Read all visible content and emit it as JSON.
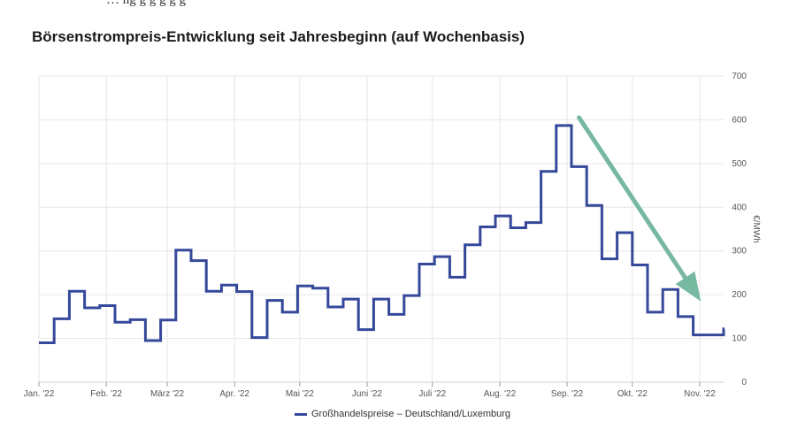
{
  "header": {
    "fragment": "… ng      g      g          g     g   g     ",
    "title": "Börsenstrompreis-Entwicklung seit Jahresbeginn (auf Wochenbasis)"
  },
  "legend": {
    "label": "Großhandelspreise – Deutschland/Luxemburg"
  },
  "colors": {
    "series": "#35489a",
    "arrow": "#77b8a0",
    "grid": "#e6e6e6"
  },
  "chart_data": {
    "type": "line",
    "step": true,
    "title": "Börsenstrompreis-Entwicklung seit Jahresbeginn (auf Wochenbasis)",
    "ylabel": "€/MWh",
    "ylim": [
      0,
      700
    ],
    "yticks": [
      0,
      100,
      200,
      300,
      400,
      500,
      600,
      700
    ],
    "xlim": [
      0,
      45
    ],
    "x_tick_positions": [
      0,
      4.43,
      8.43,
      12.86,
      17.14,
      21.57,
      25.86,
      30.29,
      34.71,
      39,
      43.43
    ],
    "x_tick_labels": [
      "Jan. '22",
      "Feb. '22",
      "März '22",
      "Apr. '22",
      "Mai '22",
      "Juni '22",
      "Juli '22",
      "Aug. '22",
      "Sep. '22",
      "Okt. '22",
      "Nov. '22"
    ],
    "grid": true,
    "legend_position": "bottom",
    "series": [
      {
        "name": "Großhandelspreise – Deutschland/Luxemburg",
        "values": [
          90,
          145,
          208,
          170,
          175,
          137,
          143,
          95,
          142,
          302,
          278,
          208,
          222,
          207,
          102,
          187,
          160,
          220,
          215,
          172,
          190,
          120,
          190,
          155,
          198,
          270,
          287,
          240,
          314,
          355,
          380,
          353,
          365,
          482,
          587,
          493,
          404,
          282,
          342,
          268,
          160,
          212,
          150,
          108,
          108,
          122
        ]
      }
    ],
    "annotation": {
      "type": "arrow",
      "from": [
        35.5,
        605
      ],
      "to": [
        43.5,
        185
      ]
    }
  }
}
